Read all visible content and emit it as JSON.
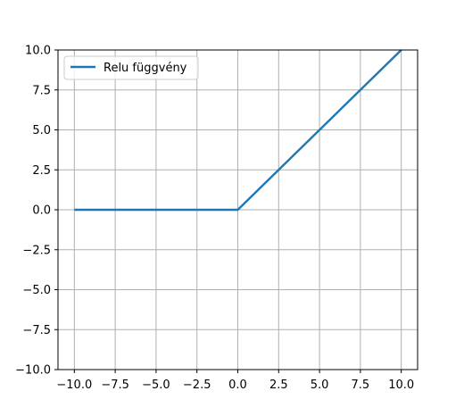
{
  "chart_data": {
    "type": "line",
    "title": "",
    "xlabel": "",
    "ylabel": "",
    "xlim": [
      -11,
      11
    ],
    "ylim": [
      -10,
      10
    ],
    "grid": true,
    "legend_position": "top-left",
    "xticks": [
      -10,
      -7.5,
      -5,
      -2.5,
      0,
      2.5,
      5,
      7.5,
      10
    ],
    "xtick_labels": [
      "−10.0",
      "−7.5",
      "−5.0",
      "−2.5",
      "0.0",
      "2.5",
      "5.0",
      "7.5",
      "10.0"
    ],
    "yticks": [
      -10,
      -7.5,
      -5,
      -2.5,
      0,
      2.5,
      5,
      7.5,
      10
    ],
    "ytick_labels": [
      "−10.0",
      "−7.5",
      "−5.0",
      "−2.5",
      "0.0",
      "2.5",
      "5.0",
      "7.5",
      "10.0"
    ],
    "series": [
      {
        "name": "Relu függvény",
        "color": "#1f77b4",
        "x": [
          -10,
          0,
          10
        ],
        "y": [
          0,
          0,
          10
        ]
      }
    ]
  }
}
